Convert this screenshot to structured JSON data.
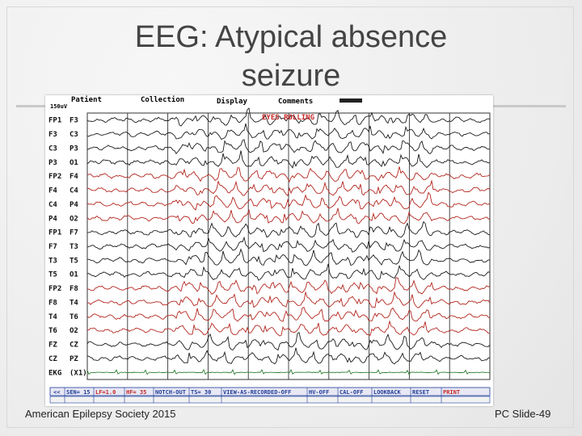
{
  "slide": {
    "title_line1": "EEG: Atypical absence",
    "title_line2": "seizure",
    "footer_left": "American Epilepsy Society 2015",
    "footer_right": "PC Slide-49"
  },
  "eeg": {
    "menu": {
      "patient": "Patient",
      "collection": "Collection",
      "display": "Display",
      "comments": "Comments"
    },
    "scale_label": "150uV",
    "annotation": "EYES ROLLING",
    "channels": [
      {
        "a": "FP1",
        "b": "F3",
        "color": "#1a1a1a"
      },
      {
        "a": "F3",
        "b": "C3",
        "color": "#1a1a1a"
      },
      {
        "a": "C3",
        "b": "P3",
        "color": "#1a1a1a"
      },
      {
        "a": "P3",
        "b": "O1",
        "color": "#1a1a1a"
      },
      {
        "a": "FP2",
        "b": "F4",
        "color": "#b3261e"
      },
      {
        "a": "F4",
        "b": "C4",
        "color": "#b3261e"
      },
      {
        "a": "C4",
        "b": "P4",
        "color": "#b3261e"
      },
      {
        "a": "P4",
        "b": "O2",
        "color": "#b3261e"
      },
      {
        "a": "FP1",
        "b": "F7",
        "color": "#1a1a1a"
      },
      {
        "a": "F7",
        "b": "T3",
        "color": "#1a1a1a"
      },
      {
        "a": "T3",
        "b": "T5",
        "color": "#1a1a1a"
      },
      {
        "a": "T5",
        "b": "O1",
        "color": "#1a1a1a"
      },
      {
        "a": "FP2",
        "b": "F8",
        "color": "#b3261e"
      },
      {
        "a": "F8",
        "b": "T4",
        "color": "#b3261e"
      },
      {
        "a": "T4",
        "b": "T6",
        "color": "#b3261e"
      },
      {
        "a": "T6",
        "b": "O2",
        "color": "#b3261e"
      },
      {
        "a": "FZ",
        "b": "CZ",
        "color": "#1a1a1a"
      },
      {
        "a": "CZ",
        "b": "PZ",
        "color": "#1a1a1a"
      },
      {
        "a": "EKG",
        "b": "(X1)",
        "color": "#2e7d32"
      }
    ],
    "status_bar": [
      {
        "text": "<<",
        "color": "#1f3c99"
      },
      {
        "text": "SEN= 15",
        "color": "#1f3c99"
      },
      {
        "text": "LF=1.0",
        "color": "#c62828"
      },
      {
        "text": "HF= 35",
        "color": "#c62828"
      },
      {
        "text": "NOTCH-OUT",
        "color": "#1f3c99"
      },
      {
        "text": "TS= 30",
        "color": "#1f3c99"
      },
      {
        "text": "VIEW-AS-RECORDED-OFF",
        "color": "#1f3c99"
      },
      {
        "text": "HV-OFF",
        "color": "#1f3c99"
      },
      {
        "text": "CAL-OFF",
        "color": "#1f3c99"
      },
      {
        "text": "LOOKBACK",
        "color": "#1f3c99"
      },
      {
        "text": "RESET",
        "color": "#1f3c99"
      },
      {
        "text": "PRINT",
        "color": "#c62828"
      }
    ],
    "colors": {
      "grid": "#333333",
      "black_trace": "#1a1a1a",
      "red_trace": "#b3261e",
      "ekg_trace": "#2e7d32",
      "annotation": "#c62828"
    }
  }
}
